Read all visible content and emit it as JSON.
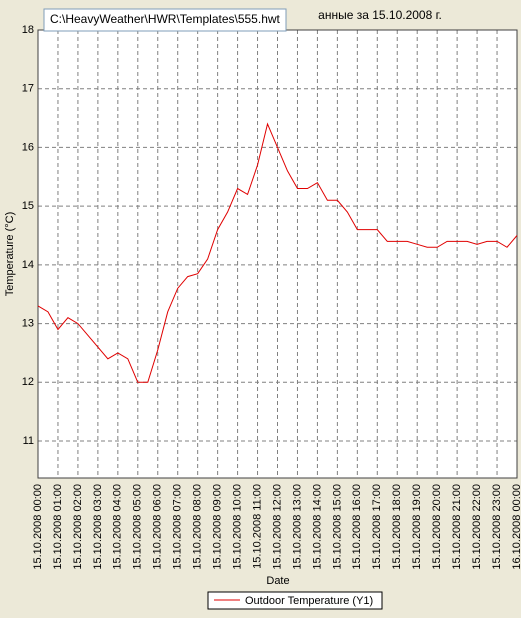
{
  "chart_data": {
    "type": "line",
    "title": "анные за 15.10.2008 г.",
    "tooltip": "C:\\HeavyWeather\\HWR\\Templates\\555.hwt",
    "x_label": "Date",
    "y_label": "Temperature (°C)",
    "x": [
      "15.10.2008 00:00",
      "15.10.2008 00:30",
      "15.10.2008 01:00",
      "15.10.2008 01:30",
      "15.10.2008 02:00",
      "15.10.2008 02:30",
      "15.10.2008 03:00",
      "15.10.2008 03:30",
      "15.10.2008 04:00",
      "15.10.2008 04:30",
      "15.10.2008 05:00",
      "15.10.2008 05:30",
      "15.10.2008 06:00",
      "15.10.2008 06:30",
      "15.10.2008 07:00",
      "15.10.2008 07:30",
      "15.10.2008 08:00",
      "15.10.2008 08:30",
      "15.10.2008 09:00",
      "15.10.2008 09:30",
      "15.10.2008 10:00",
      "15.10.2008 10:30",
      "15.10.2008 11:00",
      "15.10.2008 11:30",
      "15.10.2008 12:00",
      "15.10.2008 12:30",
      "15.10.2008 13:00",
      "15.10.2008 13:30",
      "15.10.2008 14:00",
      "15.10.2008 14:30",
      "15.10.2008 15:00",
      "15.10.2008 15:30",
      "15.10.2008 16:00",
      "15.10.2008 16:30",
      "15.10.2008 17:00",
      "15.10.2008 17:30",
      "15.10.2008 18:00",
      "15.10.2008 18:30",
      "15.10.2008 19:00",
      "15.10.2008 19:30",
      "15.10.2008 20:00",
      "15.10.2008 20:30",
      "15.10.2008 21:00",
      "15.10.2008 21:30",
      "15.10.2008 22:00",
      "15.10.2008 22:30",
      "15.10.2008 23:00",
      "15.10.2008 23:30",
      "16.10.2008 00:00"
    ],
    "series": [
      {
        "name": "Outdoor Temperature (Y1)",
        "color": "#e00000",
        "values": [
          13.3,
          13.2,
          12.9,
          13.1,
          13.0,
          12.8,
          12.6,
          12.4,
          12.5,
          12.4,
          12.0,
          12.0,
          12.55,
          13.2,
          13.6,
          13.8,
          13.85,
          14.1,
          14.6,
          14.9,
          15.3,
          15.2,
          15.7,
          16.4,
          16.0,
          15.6,
          15.3,
          15.3,
          15.4,
          15.1,
          15.1,
          14.9,
          14.6,
          14.6,
          14.6,
          14.4,
          14.4,
          14.4,
          14.35,
          14.3,
          14.3,
          14.4,
          14.4,
          14.4,
          14.35,
          14.4,
          14.4,
          14.3,
          14.5
        ]
      }
    ],
    "xlim": [
      "15.10.2008 00:00",
      "16.10.2008 00:00"
    ],
    "xticks": [
      "15.10.2008 00:00",
      "15.10.2008 01:00",
      "15.10.2008 02:00",
      "15.10.2008 03:00",
      "15.10.2008 04:00",
      "15.10.2008 05:00",
      "15.10.2008 06:00",
      "15.10.2008 07:00",
      "15.10.2008 08:00",
      "15.10.2008 09:00",
      "15.10.2008 10:00",
      "15.10.2008 11:00",
      "15.10.2008 12:00",
      "15.10.2008 13:00",
      "15.10.2008 14:00",
      "15.10.2008 15:00",
      "15.10.2008 16:00",
      "15.10.2008 17:00",
      "15.10.2008 18:00",
      "15.10.2008 19:00",
      "15.10.2008 20:00",
      "15.10.2008 21:00",
      "15.10.2008 22:00",
      "15.10.2008 23:00",
      "16.10.2008 00:00"
    ],
    "ylim": [
      10.37,
      18
    ],
    "yticks": [
      11,
      12,
      13,
      14,
      15,
      16,
      17,
      18
    ],
    "grid": true
  }
}
